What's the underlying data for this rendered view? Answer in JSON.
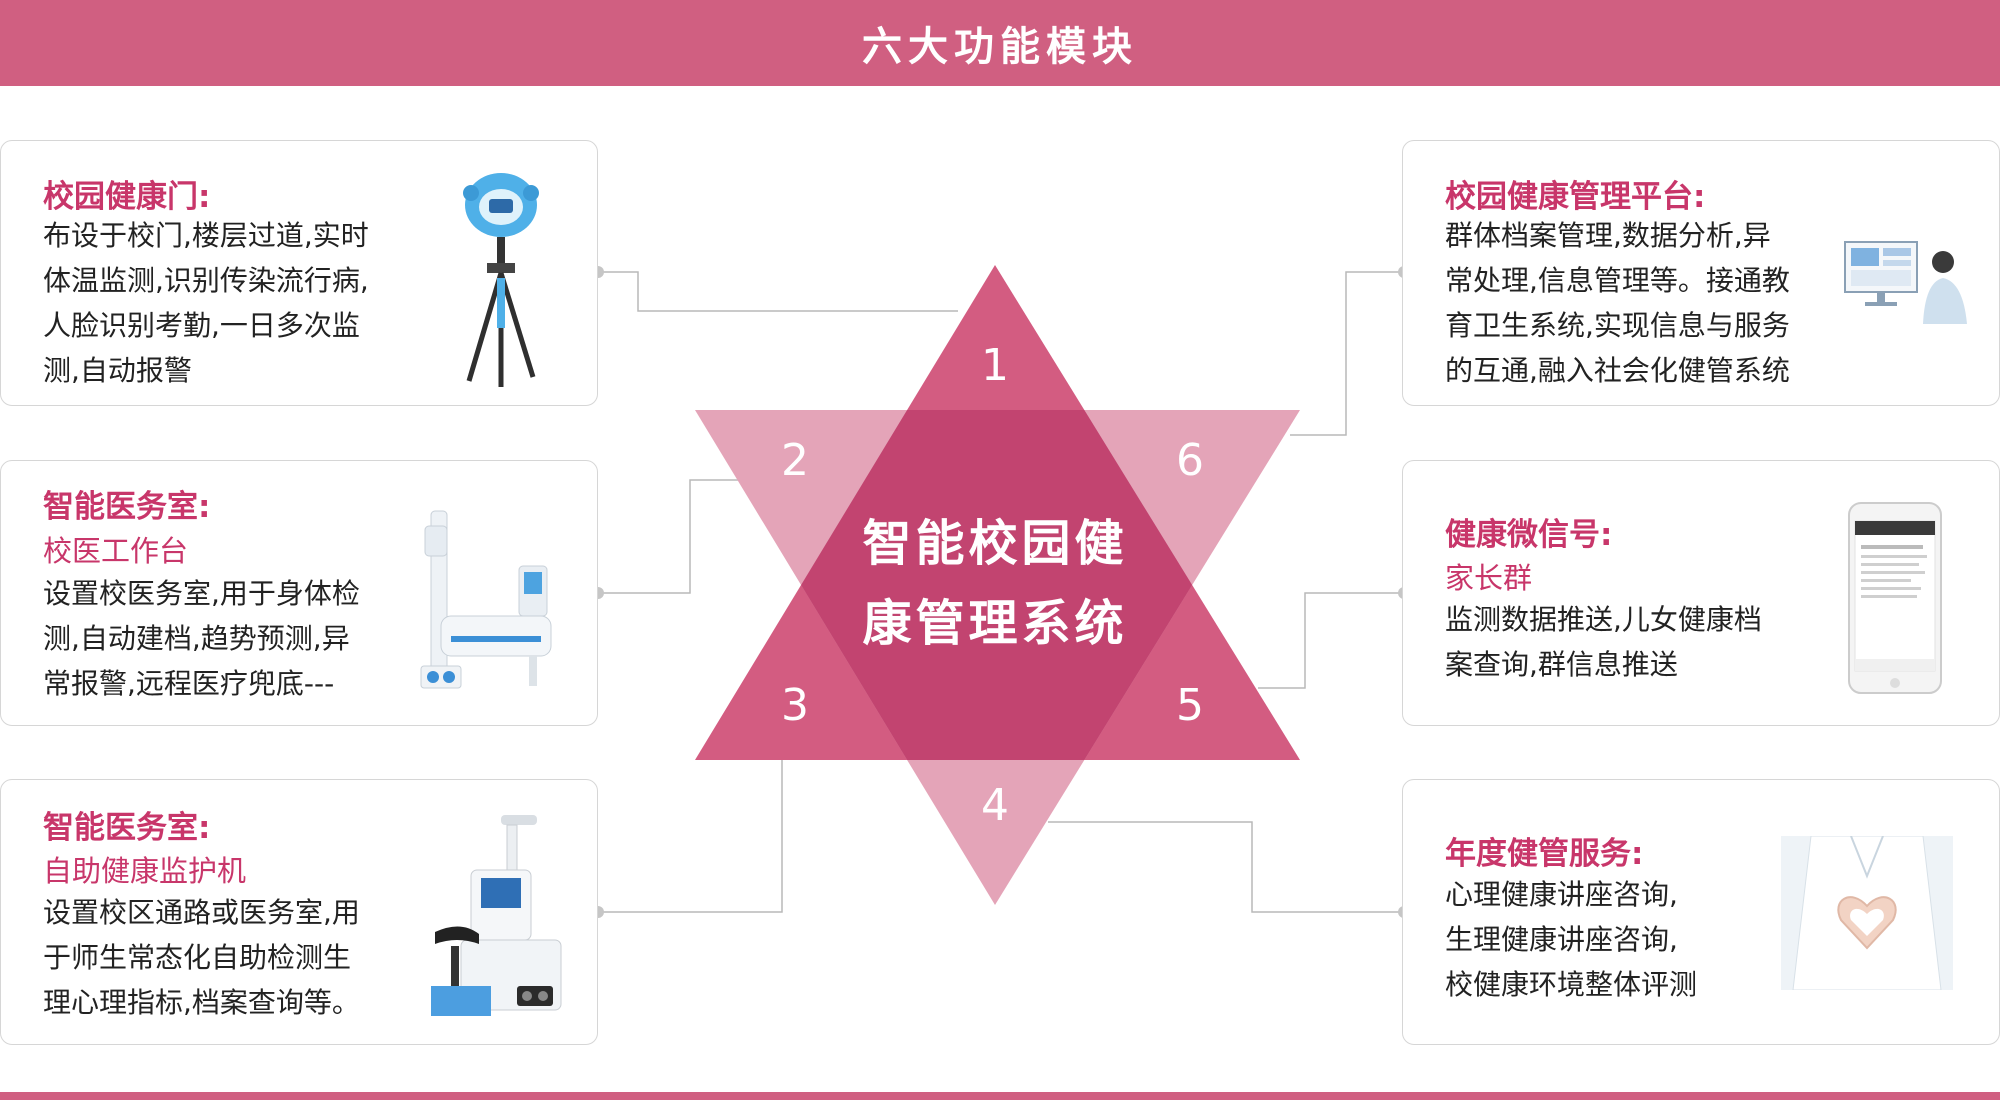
{
  "header": {
    "title": "六大功能模块"
  },
  "center": {
    "line1": "智能校园健",
    "line2": "康管理系统"
  },
  "numbers": {
    "n1": "1",
    "n2": "2",
    "n3": "3",
    "n4": "4",
    "n5": "5",
    "n6": "6"
  },
  "colors": {
    "header": "#d05f81",
    "title_text": "#c8366a",
    "triangle_up": "#d35c81",
    "triangle_down": "#e4a4b8",
    "overlap": "#c24470"
  },
  "cards": {
    "c1": {
      "title": "校园健康门:",
      "lines": [
        "布设于校门,楼层过道,实时",
        "体温监测,识别传染流行病,",
        "人脸识别考勤,一日多次监",
        "测,自动报警"
      ],
      "icon": "thermal-camera-tripod-icon"
    },
    "c2": {
      "title": "智能医务室:",
      "subtitle": "校医工作台",
      "lines": [
        "设置校医务室,用于身体检",
        "测,自动建档,趋势预测,异",
        "常报警,远程医疗兜底---"
      ],
      "icon": "health-check-station-icon"
    },
    "c3": {
      "title": "智能医务室:",
      "subtitle": "自助健康监护机",
      "lines": [
        "设置校区通路或医务室,用",
        "于师生常态化自助检测生",
        "理心理指标,档案查询等。"
      ],
      "icon": "self-service-kiosk-icon"
    },
    "c4": {
      "title": "校园健康管理平台:",
      "lines": [
        "群体档案管理,数据分析,异",
        "常处理,信息管理等。接通教",
        "育卫生系统,实现信息与服务",
        "的互通,融入社会化健管系统"
      ],
      "icon": "monitor-operator-icon"
    },
    "c5": {
      "title": "健康微信号:",
      "subtitle": "家长群",
      "lines": [
        "监测数据推送,儿女健康档",
        "案查询,群信息推送"
      ],
      "icon": "smartphone-icon"
    },
    "c6": {
      "title": "年度健管服务:",
      "lines": [
        "心理健康讲座咨询,",
        "生理健康讲座咨询,",
        "校健康环境整体评测"
      ],
      "icon": "doctor-heart-hands-icon"
    }
  }
}
